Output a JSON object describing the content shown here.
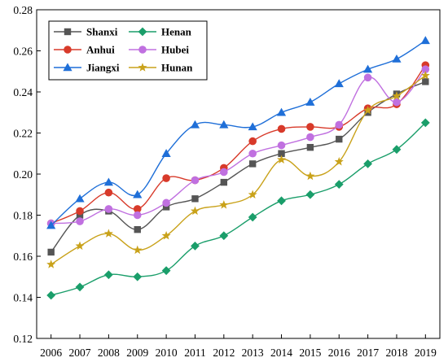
{
  "chart_data": {
    "type": "line",
    "title": "",
    "xlabel": "",
    "ylabel": "",
    "categories": [
      "2006",
      "2007",
      "2008",
      "2009",
      "2010",
      "2011",
      "2012",
      "2013",
      "2014",
      "2015",
      "2016",
      "2017",
      "2018",
      "2019"
    ],
    "ylim": [
      0.12,
      0.28
    ],
    "yticks": [
      "0.12",
      "0.14",
      "0.16",
      "0.18",
      "0.20",
      "0.22",
      "0.24",
      "0.26",
      "0.28"
    ],
    "grid": false,
    "legend_position": "top-left",
    "series": [
      {
        "name": "Shanxi",
        "color": "#555555",
        "marker": "square",
        "values": [
          0.162,
          0.18,
          0.182,
          0.173,
          0.184,
          0.188,
          0.196,
          0.205,
          0.21,
          0.213,
          0.217,
          0.23,
          0.239,
          0.245
        ]
      },
      {
        "name": "Henan",
        "color": "#1a9e6a",
        "marker": "diamond",
        "values": [
          0.141,
          0.145,
          0.151,
          0.15,
          0.153,
          0.165,
          0.17,
          0.179,
          0.187,
          0.19,
          0.195,
          0.205,
          0.212,
          0.225
        ]
      },
      {
        "name": "Anhui",
        "color": "#d83a2a",
        "marker": "circle",
        "values": [
          0.176,
          0.182,
          0.191,
          0.183,
          0.198,
          0.197,
          0.203,
          0.216,
          0.222,
          0.223,
          0.223,
          0.232,
          0.234,
          0.253
        ]
      },
      {
        "name": "Hubei",
        "color": "#c070e0",
        "marker": "circle",
        "values": [
          0.176,
          0.177,
          0.183,
          0.18,
          0.186,
          0.197,
          0.201,
          0.21,
          0.214,
          0.218,
          0.224,
          0.247,
          0.235,
          0.251
        ]
      },
      {
        "name": "Jiangxi",
        "color": "#1f6fd8",
        "marker": "triangle",
        "values": [
          0.175,
          0.188,
          0.196,
          0.19,
          0.21,
          0.224,
          0.224,
          0.223,
          0.23,
          0.235,
          0.244,
          0.251,
          0.256,
          0.265
        ]
      },
      {
        "name": "Hunan",
        "color": "#c9a21a",
        "marker": "star",
        "values": [
          0.156,
          0.165,
          0.171,
          0.163,
          0.17,
          0.182,
          0.185,
          0.19,
          0.207,
          0.199,
          0.206,
          0.231,
          0.238,
          0.248
        ]
      }
    ]
  }
}
